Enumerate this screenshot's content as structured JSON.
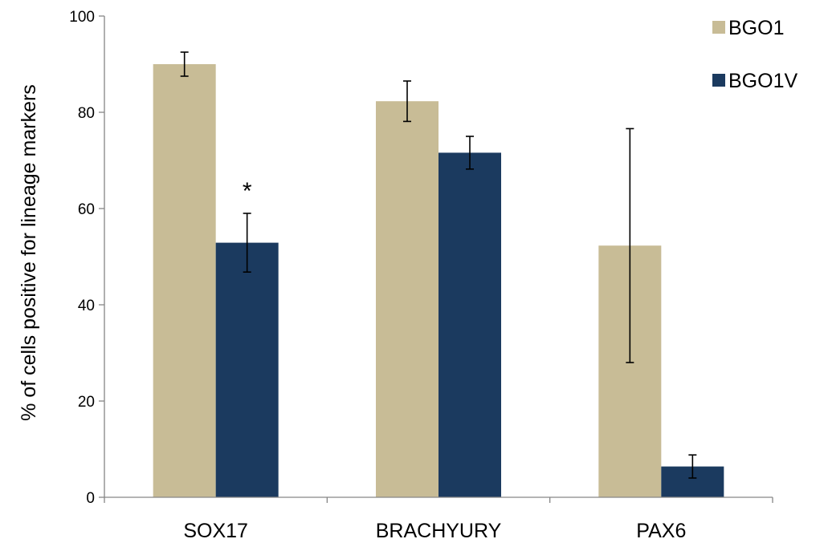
{
  "chart_data": {
    "type": "bar",
    "title": "",
    "xlabel": "",
    "ylabel": "% of cells positive for lineage markers",
    "categories": [
      "SOX17",
      "BRACHYURY",
      "PAX6"
    ],
    "ylim": [
      0,
      100
    ],
    "yticks": [
      0,
      20,
      40,
      60,
      80,
      100
    ],
    "grid": false,
    "legend_position": "top-right",
    "series": [
      {
        "name": "BGO1",
        "color": "#C8BC96",
        "values": [
          90,
          82.3,
          52.3
        ],
        "errors": [
          2.5,
          4.2,
          24.3
        ]
      },
      {
        "name": "BGO1V",
        "color": "#1B3A5F",
        "values": [
          52.9,
          71.6,
          6.4
        ],
        "errors": [
          6.1,
          3.4,
          2.4
        ]
      }
    ],
    "annotations": [
      {
        "text": "*",
        "category": "SOX17",
        "series": "BGO1V"
      }
    ]
  }
}
